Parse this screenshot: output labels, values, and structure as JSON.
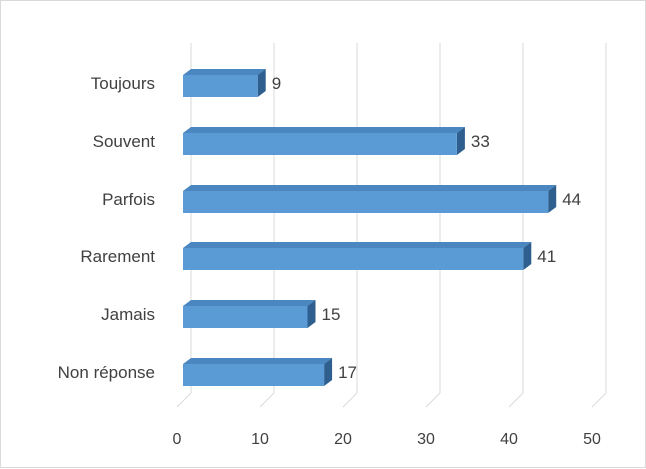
{
  "chart_data": {
    "type": "bar",
    "orientation": "horizontal",
    "style": "3d",
    "categories": [
      "Toujours",
      "Souvent",
      "Parfois",
      "Rarement",
      "Jamais",
      "Non réponse"
    ],
    "values": [
      9,
      33,
      44,
      41,
      15,
      17
    ],
    "data_labels": [
      "9",
      "33",
      "44",
      "41",
      "15",
      "17"
    ],
    "xlim": [
      0,
      50
    ],
    "x_ticks": [
      0,
      10,
      20,
      30,
      40,
      50
    ],
    "x_tick_labels": [
      "0",
      "10",
      "20",
      "30",
      "40",
      "50"
    ],
    "grid": true,
    "legend": "none",
    "colors": {
      "bar_front": "#5b9bd5",
      "bar_top": "#4a86bf",
      "bar_side": "#2e5f8e",
      "grid": "#d9d9d9",
      "text": "#404040"
    }
  }
}
